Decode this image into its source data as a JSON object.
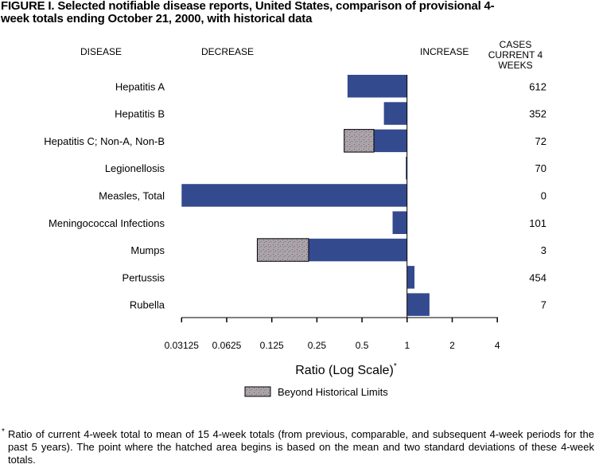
{
  "chart_data": {
    "type": "bar",
    "orientation": "horizontal",
    "title": "FIGURE I. Selected notifiable disease reports, United States, comparison of provisional 4-week totals ending October 21, 2000, with historical data",
    "column_headers": {
      "disease": "DISEASE",
      "decrease": "DECREASE",
      "increase": "INCREASE",
      "cases": "CASES CURRENT 4 WEEKS"
    },
    "categories": [
      "Hepatitis A",
      "Hepatitis B",
      "Hepatitis C; Non-A, Non-B",
      "Legionellosis",
      "Measles, Total",
      "Meningococcal Infections",
      "Mumps",
      "Pertussis",
      "Rubella"
    ],
    "values": [
      0.4,
      0.7,
      0.38,
      0.98,
      0.03125,
      0.8,
      0.1,
      1.12,
      1.41
    ],
    "beyond_historical_limit_start": [
      null,
      null,
      0.6,
      null,
      null,
      null,
      0.22,
      null,
      null
    ],
    "cases_current_4_weeks": [
      "612",
      "352",
      "72",
      "70",
      "0",
      "101",
      "3",
      "454",
      "7"
    ],
    "xscale": "log2",
    "xlim": [
      0.03125,
      4
    ],
    "baseline": 1,
    "xticks": [
      "0.03125",
      "0.0625",
      "0.125",
      "0.25",
      "0.5",
      "1",
      "2",
      "4"
    ],
    "xlabel": "Ratio (Log Scale)",
    "xlabel_marker": "*",
    "legend": {
      "label": "Beyond Historical Limits",
      "placement": "bottom"
    },
    "colors": {
      "bar": "#344a8f",
      "hatch_bg": "#a6a6a6",
      "hatch_dots": "#b0408f"
    },
    "footnote_marker": "*",
    "footnote": "Ratio of current 4-week total to mean of 15 4-week totals (from previous, comparable, and subsequent 4-week periods for the past 5 years). The point where the hatched area begins is based on the mean and two standard deviations of these 4-week totals."
  }
}
